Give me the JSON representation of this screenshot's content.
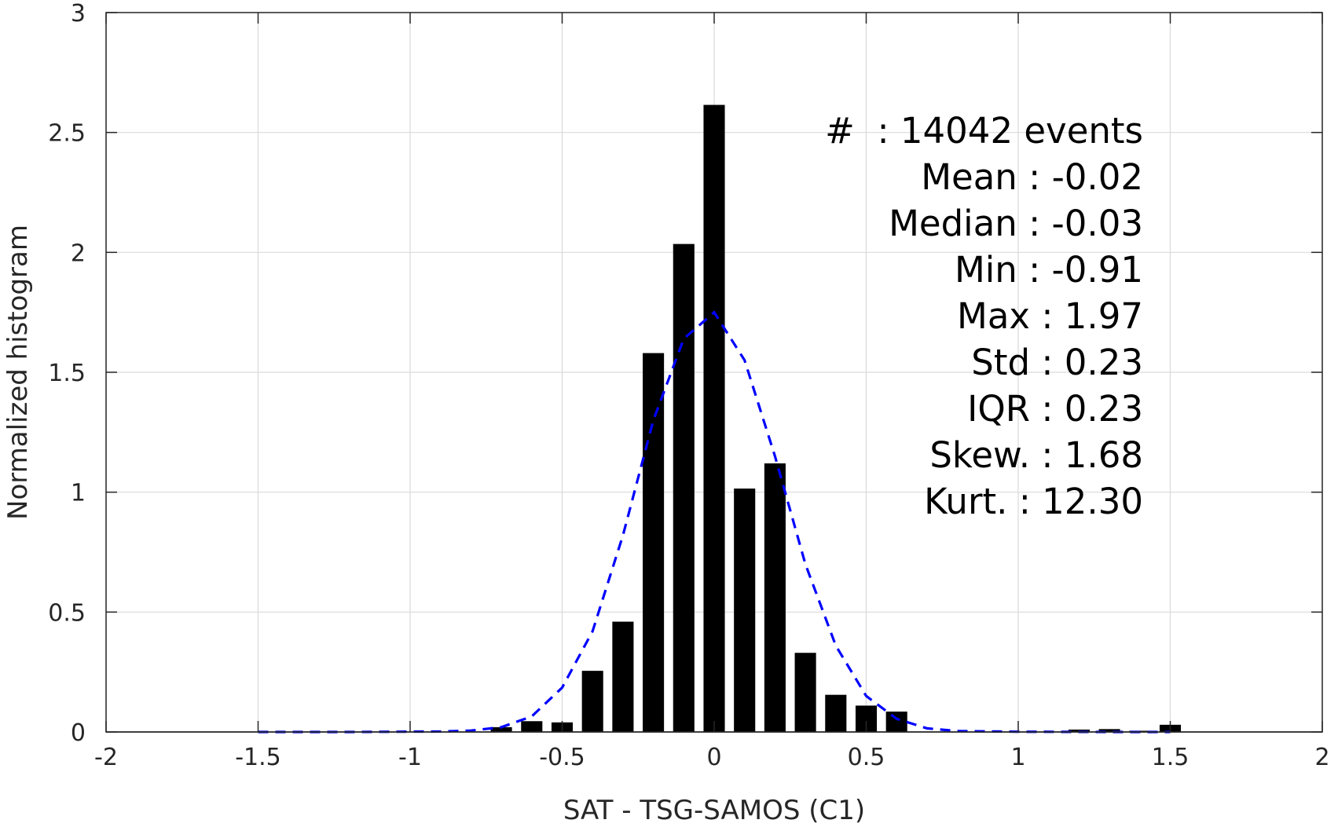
{
  "chart_data": {
    "type": "bar",
    "title": "",
    "xlabel": "SAT - TSG-SAMOS (C1)",
    "ylabel": "Normalized histogram",
    "xlim": [
      -2,
      2
    ],
    "ylim": [
      0,
      3
    ],
    "xticks": [
      -2,
      -1.5,
      -1,
      -0.5,
      0,
      0.5,
      1,
      1.5,
      2
    ],
    "xtick_labels": [
      "-2",
      "-1.5",
      "-1",
      "-0.5",
      "0",
      "0.5",
      "1",
      "1.5",
      "2"
    ],
    "yticks": [
      0,
      0.5,
      1,
      1.5,
      2,
      2.5,
      3
    ],
    "ytick_labels": [
      "0",
      "0.5",
      "1",
      "1.5",
      "2",
      "2.5",
      "3"
    ],
    "grid": true,
    "bar_width": 0.07,
    "colors": {
      "bars": "#000000",
      "fit_line": "#0000ff",
      "grid": "#d9d9d9",
      "axes": "#262626"
    },
    "series": [
      {
        "kind": "bar",
        "x": [
          -0.7,
          -0.6,
          -0.5,
          -0.4,
          -0.3,
          -0.2,
          -0.1,
          0.0,
          0.1,
          0.2,
          0.3,
          0.4,
          0.5,
          0.6,
          1.2,
          1.3,
          1.4,
          1.5
        ],
        "values": [
          0.02,
          0.045,
          0.04,
          0.255,
          0.46,
          1.58,
          2.035,
          2.615,
          1.015,
          1.12,
          0.33,
          0.155,
          0.11,
          0.085,
          0.01,
          0.012,
          0.005,
          0.03
        ]
      },
      {
        "kind": "line",
        "style": "dashed",
        "x": [
          -1.5,
          -1.2,
          -0.9,
          -0.8,
          -0.7,
          -0.6,
          -0.5,
          -0.4,
          -0.3,
          -0.2,
          -0.1,
          0.0,
          0.1,
          0.2,
          0.3,
          0.4,
          0.5,
          0.6,
          0.7,
          0.8,
          1.0,
          1.3,
          1.5
        ],
        "values": [
          0.0,
          0.0,
          0.002,
          0.006,
          0.02,
          0.065,
          0.185,
          0.42,
          0.82,
          1.3,
          1.64,
          1.75,
          1.55,
          1.15,
          0.7,
          0.36,
          0.15,
          0.055,
          0.015,
          0.004,
          0.001,
          0.0,
          0.0
        ]
      }
    ],
    "stats_box": {
      "placement": "top-right",
      "lines": [
        "#  : 14042 events",
        "Mean : -0.02",
        "Median : -0.03",
        "Min : -0.91",
        "Max : 1.97",
        "Std : 0.23",
        "IQR : 0.23",
        "Skew. : 1.68",
        "Kurt. : 12.30"
      ]
    }
  }
}
